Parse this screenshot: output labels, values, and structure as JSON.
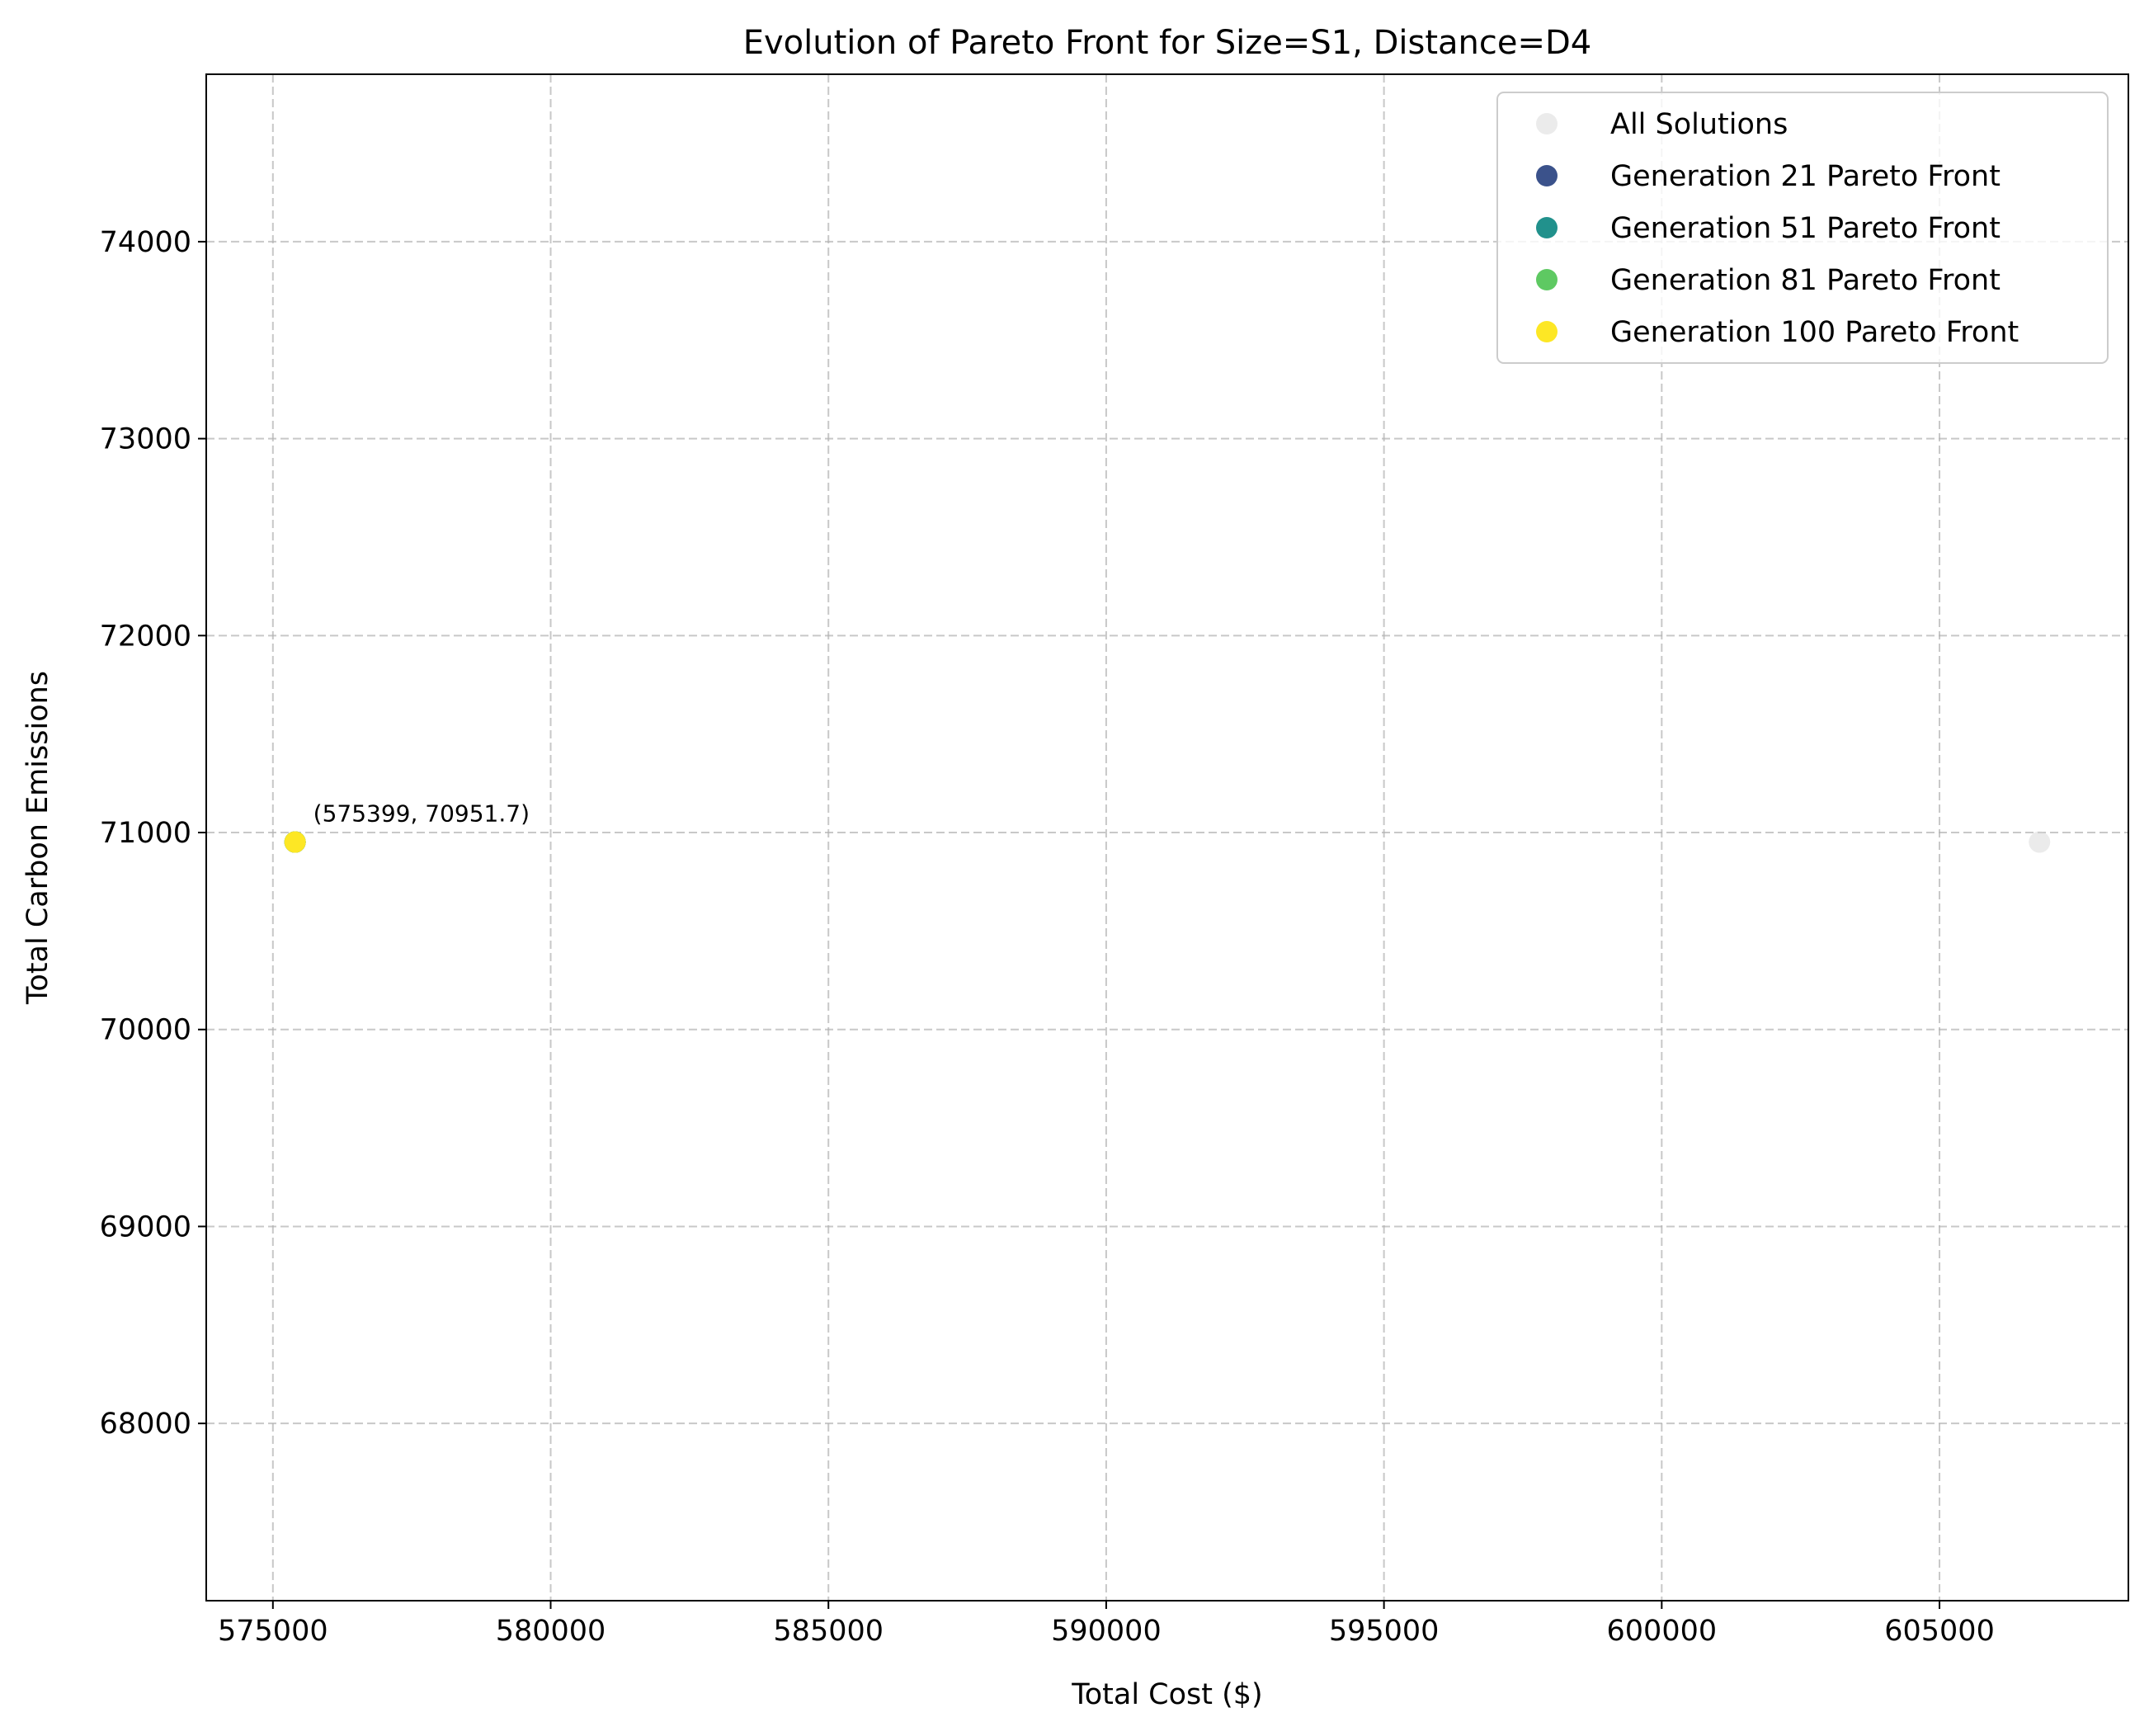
{
  "chart_data": {
    "type": "scatter",
    "title": "Evolution of Pareto Front for Size=S1, Distance=D4",
    "xlabel": "Total Cost ($)",
    "ylabel": "Total Carbon Emissions",
    "xlim": [
      573800,
      608400
    ],
    "ylim": [
      67100,
      74850
    ],
    "xticks": [
      575000,
      580000,
      585000,
      590000,
      595000,
      600000,
      605000
    ],
    "yticks": [
      68000,
      69000,
      70000,
      71000,
      72000,
      73000,
      74000
    ],
    "xtick_labels": [
      "575000",
      "580000",
      "585000",
      "590000",
      "595000",
      "600000",
      "605000"
    ],
    "ytick_labels": [
      "68000",
      "69000",
      "70000",
      "71000",
      "72000",
      "73000",
      "74000"
    ],
    "grid": true,
    "legend_position": "upper right",
    "series": [
      {
        "name": "All Solutions",
        "color": "#d3d3d3",
        "opacity": 0.45,
        "points": [
          {
            "x": 575399,
            "y": 70951.7
          },
          {
            "x": 606800,
            "y": 70951.7
          }
        ]
      },
      {
        "name": "Generation 21 Pareto Front",
        "color": "#3b528b",
        "opacity": 1,
        "points": [
          {
            "x": 575399,
            "y": 70951.7
          }
        ]
      },
      {
        "name": "Generation 51 Pareto Front",
        "color": "#21918c",
        "opacity": 1,
        "points": [
          {
            "x": 575399,
            "y": 70951.7
          }
        ]
      },
      {
        "name": "Generation 81 Pareto Front",
        "color": "#5ec962",
        "opacity": 1,
        "points": [
          {
            "x": 575399,
            "y": 70951.7
          }
        ]
      },
      {
        "name": "Generation 100 Pareto Front",
        "color": "#fde725",
        "opacity": 1,
        "points": [
          {
            "x": 575399,
            "y": 70951.7
          }
        ]
      }
    ],
    "annotations": [
      {
        "text": "(575399, 70951.7)",
        "x": 575399,
        "y": 70951.7
      }
    ]
  }
}
